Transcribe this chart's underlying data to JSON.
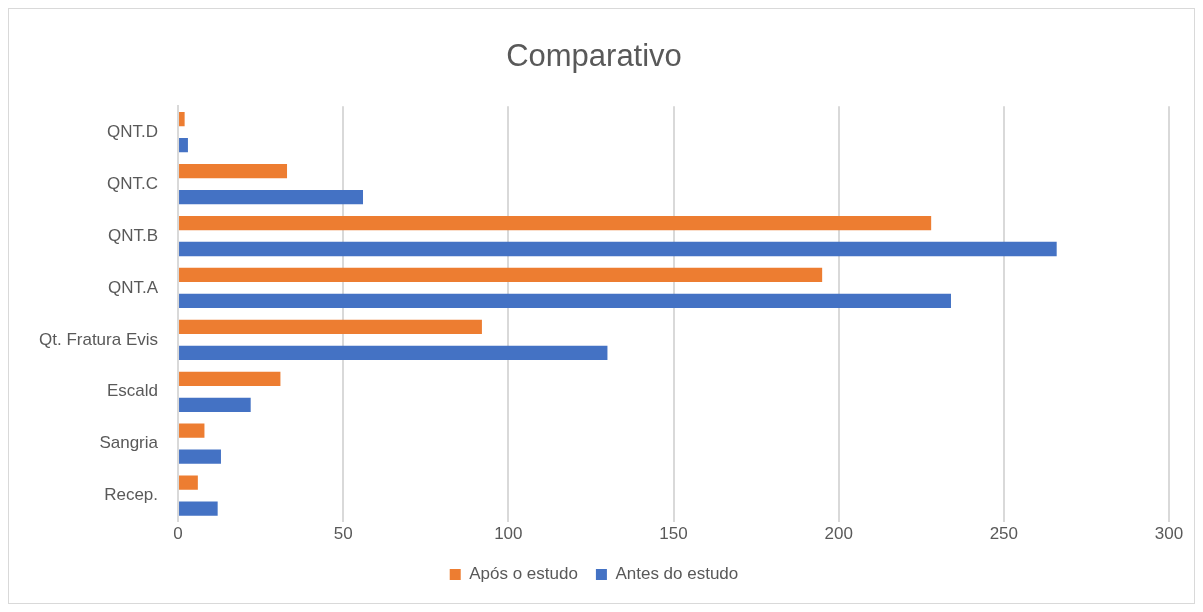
{
  "chart_data": {
    "type": "bar",
    "orientation": "horizontal",
    "title": "Comparativo",
    "categories": [
      "QNT.D",
      "QNT.C",
      "QNT.B",
      "QNT.A",
      "Qt. Fratura Evis",
      "Escald",
      "Sangria",
      "Recep."
    ],
    "series": [
      {
        "name": "Após o estudo",
        "color": "#ed7d31",
        "values": [
          2,
          33,
          228,
          195,
          92,
          31,
          8,
          6
        ]
      },
      {
        "name": "Antes do estudo",
        "color": "#4472c4",
        "values": [
          3,
          56,
          266,
          234,
          130,
          22,
          13,
          12
        ]
      }
    ],
    "xlim": [
      0,
      300
    ],
    "xticks": [
      0,
      50,
      100,
      150,
      200,
      250,
      300
    ],
    "grid": "x",
    "legend": "bottom"
  }
}
